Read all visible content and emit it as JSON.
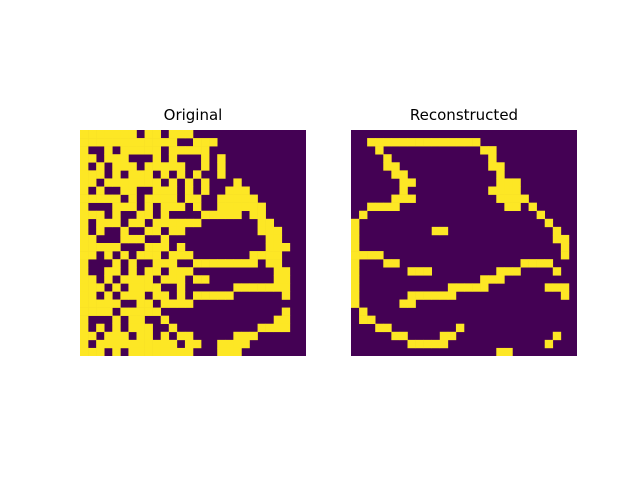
{
  "chart_data": {
    "type": "heatmap",
    "colors": {
      "on": "#fde725",
      "off": "#440154"
    },
    "panels": [
      {
        "title": "Original",
        "rows": [
          "1111111011011100000000000000",
          "1111111111110011100000000000",
          "1001011111011111000000000000",
          "1101110001010001010000000000",
          "1010111011111001010000000000",
          "1110101110101010010000000000",
          "1101111111010101000100000000",
          "1010011001110101001110000000",
          "1111101011110110011111000000",
          "1000111010111010011111100000",
          "1110100110100001111101100000",
          "1011101101111110000000110000",
          "1010010011011000000000111000",
          "1100011100100000000000011000",
          "1111100011101000000000011100",
          "1101010111011100000001111000",
          "1000101001110011111111011000",
          "1001101011011100000000001100",
          "1101011110111011000000001100",
          "1110101111001000000111111100",
          "1101011101101011111000000100",
          "1111100110111100000000000000",
          "1111011111000000000000000100",
          "1000101100100000000000001100",
          "1010101110010000000000111100",
          "1101110110101100000111000000",
          "1011111111110110011110000000",
          "1110101111111100011100000000"
        ]
      },
      {
        "title": "Reconstructed",
        "rows": [
          "0000000000000000000000000000",
          "0011111111111111000000000000",
          "0001000000000000110000000000",
          "0000100000000000010000000000",
          "0000110000000000011000000000",
          "0000011000000000001000000000",
          "0000001100000000001110000000",
          "0000001000000000011110000000",
          "0000011100000000001111000000",
          "0011110000000000000110100000",
          "0100000000000000000000010000",
          "1000000000000000000000001000",
          "1000000000110000000000000100",
          "1000000000000000000000000110",
          "1000000000000000000000000010",
          "1111000000000000000000000010",
          "1000110000000000000001111000",
          "1000000111000000001110000100",
          "1000000000000000111000000000",
          "1000000000001111100000001110",
          "1000000111111000000000000010",
          "1000001100000000000000000000",
          "0100000000000000000000000000",
          "0110000000000000000000000000",
          "0001100000000100000000000000",
          "0000011000011000000000000100",
          "0000000111110000000000001000",
          "0000000000000000001100000000"
        ]
      }
    ]
  }
}
